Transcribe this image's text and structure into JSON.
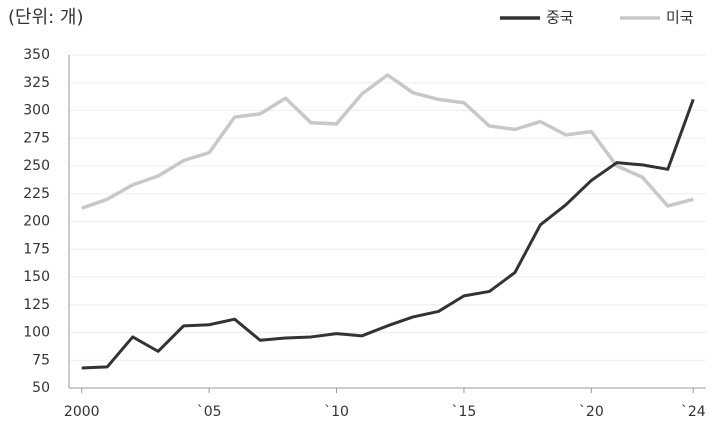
{
  "chart_data": {
    "type": "line",
    "unit_label": "(단위: 개)",
    "x": [
      2000,
      2001,
      2002,
      2003,
      2004,
      2005,
      2006,
      2007,
      2008,
      2009,
      2010,
      2011,
      2012,
      2013,
      2014,
      2015,
      2016,
      2017,
      2018,
      2019,
      2020,
      2021,
      2022,
      2023,
      2024
    ],
    "series": [
      {
        "name": "중국",
        "color": "#333333",
        "values": [
          68,
          69,
          96,
          83,
          106,
          107,
          112,
          93,
          95,
          96,
          99,
          97,
          106,
          114,
          119,
          133,
          137,
          154,
          197,
          215,
          237,
          253,
          251,
          247,
          310
        ]
      },
      {
        "name": "미국",
        "color": "#c8c8c8",
        "values": [
          212,
          220,
          233,
          241,
          255,
          262,
          294,
          297,
          311,
          289,
          288,
          315,
          332,
          316,
          310,
          307,
          286,
          283,
          290,
          278,
          281,
          250,
          240,
          214,
          220
        ]
      }
    ],
    "xlim": [
      1999.5,
      2024.5
    ],
    "xticks": [
      2000,
      {
        "value": 2005,
        "label": "`05"
      },
      {
        "value": 2010,
        "label": "`10"
      },
      {
        "value": 2015,
        "label": "`15"
      },
      {
        "value": 2020,
        "label": "`20"
      },
      {
        "value": 2024,
        "label": "`24"
      }
    ],
    "ylim": [
      50,
      350
    ],
    "yticks": [
      50,
      75,
      100,
      125,
      150,
      175,
      200,
      225,
      250,
      275,
      300,
      325,
      350
    ],
    "grid": true,
    "legend": "top-right"
  }
}
